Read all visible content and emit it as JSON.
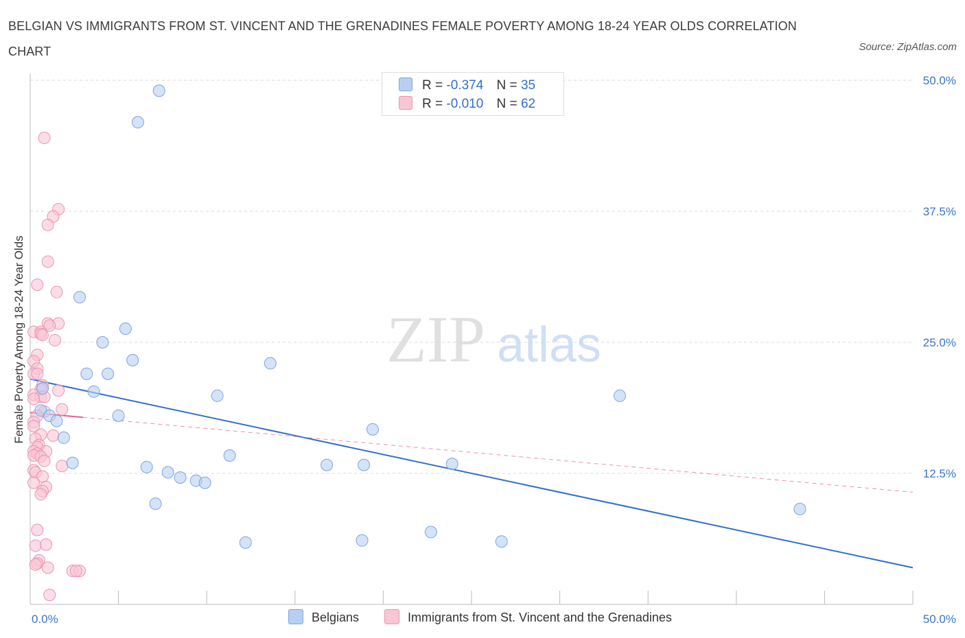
{
  "title": "BELGIAN VS IMMIGRANTS FROM ST. VINCENT AND THE GRENADINES FEMALE POVERTY AMONG 18-24 YEAR OLDS CORRELATION CHART",
  "source": "Source: ZipAtlas.com",
  "watermark": {
    "zip": "ZIP",
    "atlas": "atlas"
  },
  "legend": {
    "r_label": "R =",
    "n_label": "N =",
    "belgians": {
      "r": "-0.374",
      "n": "35"
    },
    "immigrants": {
      "r": "-0.010",
      "n": "62"
    }
  },
  "colors": {
    "blue_fill": "#b7d0f2",
    "blue_stroke": "#7ba5e0",
    "blue_line": "#2f6fcc",
    "pink_fill": "#f8c6d5",
    "pink_stroke": "#ec93b0",
    "pink_line": "#e4608a",
    "tick_text": "#3a74c9",
    "grid": "#d8d8d8"
  },
  "chart_data": {
    "type": "scatter",
    "title": "BELGIAN VS IMMIGRANTS FROM ST. VINCENT AND THE GRENADINES FEMALE POVERTY AMONG 18-24 YEAR OLDS CORRELATION CHART",
    "xlabel": "",
    "ylabel": "Female Poverty Among 18-24 Year Olds",
    "xlim": [
      0,
      50
    ],
    "ylim": [
      0,
      50
    ],
    "x_tick_labels": [
      "0.0%",
      "50.0%"
    ],
    "y_tick_labels": [
      "12.5%",
      "25.0%",
      "37.5%",
      "50.0%"
    ],
    "y_ticks": [
      12.5,
      25,
      37.5,
      50
    ],
    "series": [
      {
        "name": "Belgians",
        "r": -0.374,
        "n": 35,
        "trend": {
          "x": [
            0,
            50
          ],
          "y": [
            21.5,
            3.5
          ]
        },
        "points": [
          [
            7.3,
            49.0
          ],
          [
            6.1,
            46.0
          ],
          [
            2.8,
            29.3
          ],
          [
            5.4,
            26.3
          ],
          [
            4.1,
            25.0
          ],
          [
            5.8,
            23.3
          ],
          [
            3.2,
            22.0
          ],
          [
            4.4,
            22.0
          ],
          [
            13.6,
            23.0
          ],
          [
            3.6,
            20.3
          ],
          [
            10.6,
            19.9
          ],
          [
            0.7,
            20.6
          ],
          [
            33.4,
            19.9
          ],
          [
            0.6,
            18.5
          ],
          [
            5.0,
            18.0
          ],
          [
            1.1,
            18.0
          ],
          [
            1.5,
            17.5
          ],
          [
            19.4,
            16.7
          ],
          [
            1.9,
            15.9
          ],
          [
            11.3,
            14.2
          ],
          [
            2.4,
            13.5
          ],
          [
            6.6,
            13.1
          ],
          [
            16.8,
            13.3
          ],
          [
            18.9,
            13.3
          ],
          [
            23.9,
            13.4
          ],
          [
            7.8,
            12.6
          ],
          [
            8.5,
            12.1
          ],
          [
            9.4,
            11.8
          ],
          [
            9.9,
            11.6
          ],
          [
            7.1,
            9.6
          ],
          [
            43.6,
            9.1
          ],
          [
            12.2,
            5.9
          ],
          [
            18.8,
            6.1
          ],
          [
            22.7,
            6.9
          ],
          [
            26.7,
            6.0
          ]
        ]
      },
      {
        "name": "Immigrants from St. Vincent and the Grenadines",
        "r": -0.01,
        "n": 62,
        "trend": {
          "x": [
            0,
            50
          ],
          "y": [
            18.3,
            10.7
          ]
        },
        "trend_solid_to_x": 3.0,
        "points": [
          [
            0.8,
            44.5
          ],
          [
            1.6,
            37.7
          ],
          [
            1.3,
            37.0
          ],
          [
            1.0,
            36.2
          ],
          [
            1.0,
            32.7
          ],
          [
            0.4,
            30.5
          ],
          [
            1.5,
            29.8
          ],
          [
            1.0,
            26.8
          ],
          [
            1.6,
            26.8
          ],
          [
            1.1,
            26.6
          ],
          [
            0.2,
            26.0
          ],
          [
            0.6,
            26.0
          ],
          [
            0.6,
            25.8
          ],
          [
            0.7,
            25.7
          ],
          [
            1.4,
            25.2
          ],
          [
            0.4,
            23.8
          ],
          [
            0.2,
            23.2
          ],
          [
            0.4,
            22.5
          ],
          [
            0.2,
            22.0
          ],
          [
            0.4,
            22.0
          ],
          [
            0.7,
            20.9
          ],
          [
            0.6,
            20.5
          ],
          [
            1.6,
            20.4
          ],
          [
            0.2,
            20.0
          ],
          [
            0.6,
            19.8
          ],
          [
            0.8,
            19.8
          ],
          [
            0.2,
            19.6
          ],
          [
            1.8,
            18.6
          ],
          [
            0.8,
            18.4
          ],
          [
            0.4,
            18.0
          ],
          [
            0.2,
            17.4
          ],
          [
            0.2,
            17.0
          ],
          [
            0.6,
            16.2
          ],
          [
            1.3,
            16.1
          ],
          [
            0.3,
            15.8
          ],
          [
            0.5,
            15.2
          ],
          [
            0.4,
            15.0
          ],
          [
            0.2,
            14.6
          ],
          [
            0.9,
            14.6
          ],
          [
            0.4,
            14.4
          ],
          [
            0.2,
            14.2
          ],
          [
            0.6,
            14.1
          ],
          [
            0.8,
            13.7
          ],
          [
            1.8,
            13.2
          ],
          [
            0.2,
            12.8
          ],
          [
            0.3,
            12.6
          ],
          [
            0.7,
            12.2
          ],
          [
            0.2,
            11.6
          ],
          [
            0.9,
            11.2
          ],
          [
            0.7,
            10.8
          ],
          [
            0.6,
            10.5
          ],
          [
            0.4,
            7.1
          ],
          [
            0.3,
            5.6
          ],
          [
            0.9,
            5.7
          ],
          [
            0.5,
            4.2
          ],
          [
            0.4,
            3.9
          ],
          [
            1.0,
            3.5
          ],
          [
            2.4,
            3.2
          ],
          [
            2.8,
            3.2
          ],
          [
            1.1,
            0.9
          ],
          [
            2.6,
            3.2
          ],
          [
            0.3,
            3.8
          ]
        ]
      }
    ],
    "legend_position": "bottom"
  },
  "bottom_legend": {
    "belgians": "Belgians",
    "immigrants": "Immigrants from St. Vincent and the Grenadines"
  }
}
